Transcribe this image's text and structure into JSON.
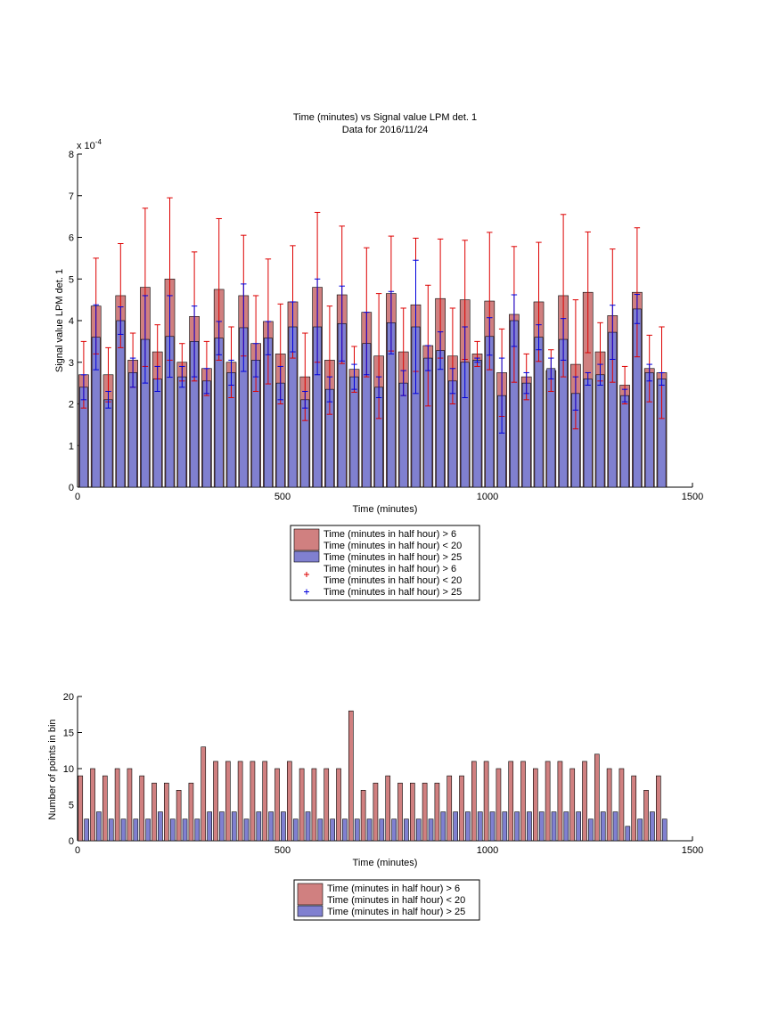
{
  "figure": {
    "background": "#ffffff",
    "series_colors": {
      "bar_wide": "#d08080",
      "bar_narrow": "#8080d0",
      "err_red": "#dd0000",
      "err_blue": "#0000dd"
    }
  },
  "chart_data": [
    {
      "type": "bar",
      "title": "Time (minutes) vs Signal value LPM det. 1",
      "subtitle": "Data for 2016/11/24",
      "xlabel": "Time (minutes)",
      "ylabel": "Signal value LPM det. 1",
      "exponent_label": "x 10",
      "exponent_power": "-4",
      "xlim": [
        0,
        1500
      ],
      "ylim": [
        0,
        8
      ],
      "xticks": [
        0,
        500,
        1000,
        1500
      ],
      "yticks": [
        0,
        1,
        2,
        3,
        4,
        5,
        6,
        7,
        8
      ],
      "grid": false,
      "legend": {
        "placement": "below",
        "entries": [
          {
            "line1": "Time (minutes in half hour) > 6",
            "line2": "Time (minutes in half hour) < 20",
            "color": "#d08080",
            "marker": "patch"
          },
          {
            "line1": "Time (minutes in half hour) > 25",
            "line2": "",
            "color": "#8080d0",
            "marker": "patch"
          },
          {
            "line1": "Time (minutes in half hour) > 6",
            "line2": "Time (minutes in half hour) < 20",
            "color": "#dd0000",
            "marker": "+"
          },
          {
            "line1": "Time (minutes in half hour) > 25",
            "line2": "",
            "color": "#0000dd",
            "marker": "+"
          }
        ]
      },
      "x": [
        15,
        45,
        75,
        105,
        135,
        165,
        195,
        225,
        255,
        285,
        315,
        345,
        375,
        405,
        435,
        465,
        495,
        525,
        555,
        585,
        615,
        645,
        675,
        705,
        735,
        765,
        795,
        825,
        855,
        885,
        915,
        945,
        975,
        1005,
        1035,
        1065,
        1095,
        1125,
        1155,
        1185,
        1215,
        1245,
        1275,
        1305,
        1335,
        1365,
        1395,
        1425
      ],
      "series": [
        {
          "name": "Time (minutes in half hour) > 6 Time (minutes in half hour) < 20",
          "values": [
            2.7,
            4.35,
            2.7,
            4.6,
            3.05,
            4.8,
            3.25,
            5.0,
            3.0,
            4.1,
            2.85,
            4.75,
            3.0,
            4.6,
            3.45,
            3.98,
            3.2,
            4.45,
            2.65,
            4.8,
            3.05,
            4.62,
            2.83,
            4.2,
            3.15,
            4.65,
            3.25,
            4.38,
            3.4,
            4.53,
            3.15,
            4.5,
            3.2,
            4.47,
            2.75,
            4.15,
            2.65,
            4.45,
            2.8,
            4.6,
            2.95,
            4.68,
            3.25,
            4.12,
            2.45,
            4.68,
            2.85,
            2.75
          ],
          "err": [
            0.8,
            1.15,
            0.65,
            1.25,
            0.65,
            1.9,
            0.65,
            1.95,
            0.45,
            1.55,
            0.65,
            1.7,
            0.85,
            1.45,
            1.15,
            1.5,
            1.2,
            1.35,
            1.05,
            1.8,
            1.3,
            1.65,
            0.55,
            1.55,
            1.5,
            1.38,
            1.05,
            1.6,
            1.45,
            1.43,
            1.15,
            1.43,
            0.3,
            1.65,
            1.05,
            1.63,
            0.55,
            1.43,
            0.5,
            1.95,
            1.55,
            1.45,
            0.7,
            1.6,
            0.45,
            1.55,
            0.8,
            1.1
          ]
        },
        {
          "name": "Time (minutes in half hour) > 25",
          "values": [
            2.4,
            3.6,
            2.1,
            4.0,
            2.75,
            3.55,
            2.6,
            3.62,
            2.65,
            3.5,
            2.55,
            3.58,
            2.75,
            3.83,
            3.05,
            3.58,
            2.5,
            3.85,
            2.1,
            3.85,
            2.35,
            3.93,
            2.65,
            3.45,
            2.4,
            3.95,
            2.5,
            3.85,
            3.1,
            3.28,
            2.55,
            3.0,
            3.05,
            3.62,
            2.2,
            4.0,
            2.5,
            3.6,
            2.85,
            3.55,
            2.25,
            2.6,
            2.7,
            3.72,
            2.2,
            4.28,
            2.75,
            2.6
          ],
          "err": [
            0.3,
            0.78,
            0.2,
            0.33,
            0.35,
            1.05,
            0.3,
            0.98,
            0.25,
            0.85,
            0.3,
            0.4,
            0.3,
            1.05,
            0.4,
            0.4,
            0.4,
            0.6,
            0.2,
            1.15,
            0.3,
            0.9,
            0.3,
            0.75,
            0.25,
            0.75,
            0.3,
            1.6,
            0.3,
            0.45,
            0.3,
            0.85,
            0.05,
            0.45,
            0.9,
            0.62,
            0.25,
            0.3,
            0.25,
            0.5,
            0.4,
            0.15,
            0.25,
            0.65,
            0.15,
            0.35,
            0.2,
            0.15
          ]
        }
      ]
    },
    {
      "type": "bar",
      "xlabel": "Time (minutes)",
      "ylabel": "Number of points in bin",
      "xlim": [
        0,
        1500
      ],
      "ylim": [
        0,
        20
      ],
      "xticks": [
        0,
        500,
        1000,
        1500
      ],
      "yticks": [
        0,
        5,
        10,
        15,
        20
      ],
      "grid": false,
      "legend": {
        "placement": "below",
        "entries": [
          {
            "line1": "Time (minutes in half hour) > 6",
            "line2": "Time (minutes in half hour) < 20",
            "color": "#d08080"
          },
          {
            "line1": "Time (minutes in half hour) > 25",
            "line2": "",
            "color": "#8080d0"
          }
        ]
      },
      "x": [
        15,
        45,
        75,
        105,
        135,
        165,
        195,
        225,
        255,
        285,
        315,
        345,
        375,
        405,
        435,
        465,
        495,
        525,
        555,
        585,
        615,
        645,
        675,
        705,
        735,
        765,
        795,
        825,
        855,
        885,
        915,
        945,
        975,
        1005,
        1035,
        1065,
        1095,
        1125,
        1155,
        1185,
        1215,
        1245,
        1275,
        1305,
        1335,
        1365,
        1395,
        1425
      ],
      "series": [
        {
          "name": "Time (minutes in half hour) > 6 Time (minutes in half hour) < 20",
          "values": [
            9,
            10,
            9,
            10,
            10,
            9,
            8,
            8,
            7,
            8,
            13,
            11,
            11,
            11,
            11,
            11,
            10,
            11,
            10,
            10,
            10,
            10,
            18,
            7,
            8,
            9,
            8,
            8,
            8,
            8,
            9,
            9,
            11,
            11,
            10,
            11,
            11,
            10,
            11,
            11,
            10,
            11,
            12,
            10,
            10,
            9,
            7,
            9
          ]
        },
        {
          "name": "Time (minutes in half hour) > 25",
          "values": [
            3,
            4,
            3,
            3,
            3,
            3,
            4,
            3,
            3,
            3,
            4,
            4,
            4,
            3,
            4,
            4,
            4,
            3,
            4,
            3,
            3,
            3,
            3,
            3,
            3,
            3,
            3,
            3,
            3,
            4,
            4,
            4,
            4,
            4,
            4,
            4,
            4,
            4,
            4,
            4,
            4,
            3,
            4,
            4,
            2,
            3,
            4,
            3
          ]
        }
      ]
    }
  ]
}
